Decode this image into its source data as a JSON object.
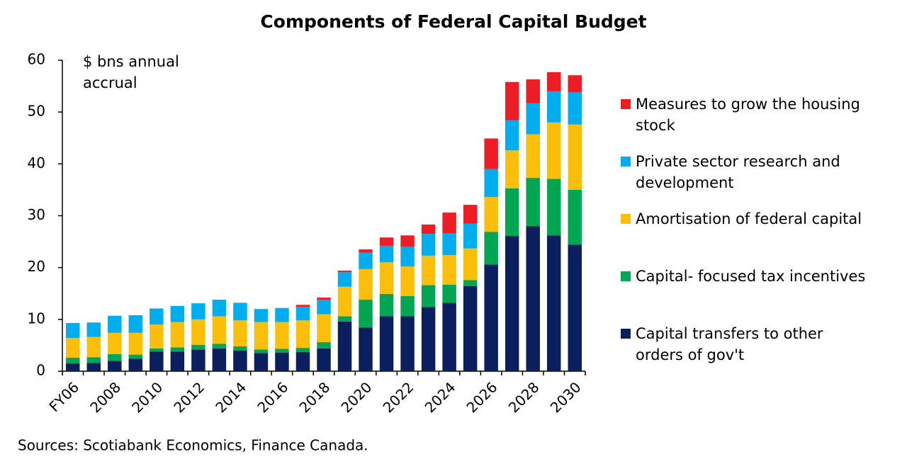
{
  "chart_data": {
    "type": "stacked-bar",
    "title": "Components of Federal Capital Budget",
    "annotation": "$ bns annual accrual",
    "source": "Sources: Scotiabank Economics, Finance Canada.",
    "categories": [
      "FY06",
      null,
      "2008",
      null,
      "2010",
      null,
      "2012",
      null,
      "2014",
      null,
      "2016",
      null,
      "2018",
      null,
      "2020",
      null,
      "2022",
      null,
      "2024",
      null,
      "2026",
      null,
      "2028",
      null,
      "2030"
    ],
    "series": [
      {
        "name": "Capital transfers to other orders of gov't",
        "color": "#0b1f5e",
        "values": [
          1.5,
          1.6,
          2.0,
          2.4,
          3.8,
          3.8,
          4.2,
          4.4,
          4.0,
          3.5,
          3.6,
          3.7,
          4.4,
          9.6,
          8.4,
          10.6,
          10.6,
          12.4,
          13.2,
          16.4,
          20.6,
          26.1,
          28.0,
          26.2,
          24.4
        ]
      },
      {
        "name": "Capital- focused tax incentives",
        "color": "#00a651",
        "values": [
          1.1,
          1.1,
          1.3,
          0.8,
          0.6,
          0.8,
          0.9,
          0.9,
          0.8,
          0.7,
          0.7,
          0.8,
          1.2,
          1.0,
          5.4,
          4.3,
          3.9,
          4.2,
          3.5,
          1.2,
          6.3,
          9.2,
          9.3,
          10.9,
          10.6
        ]
      },
      {
        "name": "Amortisation of federal capital",
        "color": "#fbbf0a",
        "values": [
          3.8,
          3.9,
          4.1,
          4.2,
          4.6,
          4.9,
          4.9,
          5.3,
          5.0,
          5.3,
          5.2,
          5.3,
          5.4,
          5.7,
          5.9,
          6.1,
          5.7,
          5.7,
          5.7,
          6.1,
          6.7,
          7.3,
          8.4,
          10.9,
          12.6
        ]
      },
      {
        "name": "Private sector research and development",
        "color": "#00aeef",
        "values": [
          2.9,
          2.8,
          3.3,
          3.4,
          3.1,
          3.1,
          3.1,
          3.2,
          3.4,
          2.5,
          2.7,
          2.6,
          2.8,
          2.8,
          3.2,
          3.2,
          3.8,
          4.2,
          4.2,
          4.8,
          5.4,
          5.8,
          6.0,
          6.0,
          6.2
        ]
      },
      {
        "name": "Measures to grow the housing stock",
        "color": "#ee1c25",
        "values": [
          0,
          0,
          0,
          0,
          0,
          0,
          0,
          0,
          0,
          0,
          0,
          0.4,
          0.4,
          0.3,
          0.6,
          1.6,
          2.2,
          1.8,
          4.0,
          3.6,
          5.9,
          7.4,
          4.6,
          3.7,
          3.3
        ]
      }
    ],
    "ylim": [
      0,
      60
    ],
    "yticks": [
      0,
      10,
      20,
      30,
      40,
      50,
      60
    ]
  }
}
